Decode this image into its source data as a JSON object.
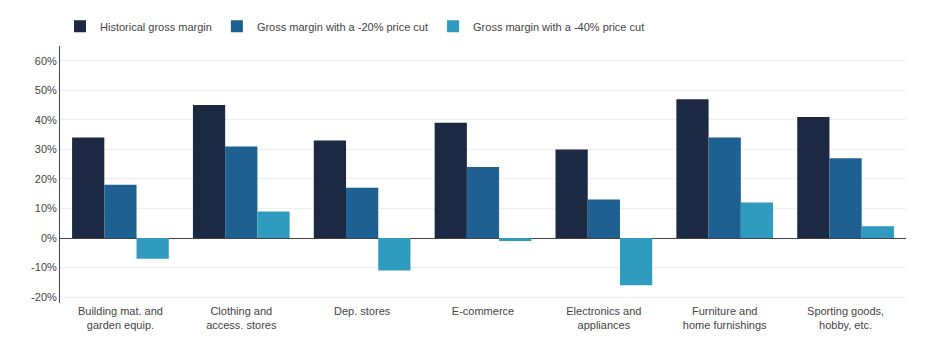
{
  "chart_data": {
    "type": "bar",
    "categories": [
      "Building mat. and\ngarden equip.",
      "Clothing and\naccess. stores",
      "Dep. stores",
      "E-commerce",
      "Electronics and\nappliances",
      "Furniture and\nhome furnishings",
      "Sporting goods,\nhobby, etc."
    ],
    "series": [
      {
        "name": "Historical gross margin",
        "color": "#1b2a42",
        "values": [
          34,
          45,
          33,
          39,
          30,
          47,
          41
        ]
      },
      {
        "name": "Gross margin with a -20% price cut",
        "color": "#1e6091",
        "values": [
          18,
          31,
          17,
          24,
          13,
          34,
          27
        ]
      },
      {
        "name": "Gross margin with a -40% price cut",
        "color": "#2e9bbf",
        "values": [
          -7,
          9,
          -11,
          -1,
          -16,
          12,
          4
        ]
      }
    ],
    "ylim": [
      -22,
      65
    ],
    "yticks": [
      {
        "value": -20,
        "label": "-20%"
      },
      {
        "value": -10,
        "label": "-10%"
      },
      {
        "value": 0,
        "label": "0%"
      },
      {
        "value": 10,
        "label": "10%"
      },
      {
        "value": 20,
        "label": "20%"
      },
      {
        "value": 30,
        "label": "30%"
      },
      {
        "value": 40,
        "label": "40%"
      },
      {
        "value": 50,
        "label": "50%"
      },
      {
        "value": 60,
        "label": "60%"
      }
    ],
    "grid": true,
    "legend": "upper left"
  }
}
